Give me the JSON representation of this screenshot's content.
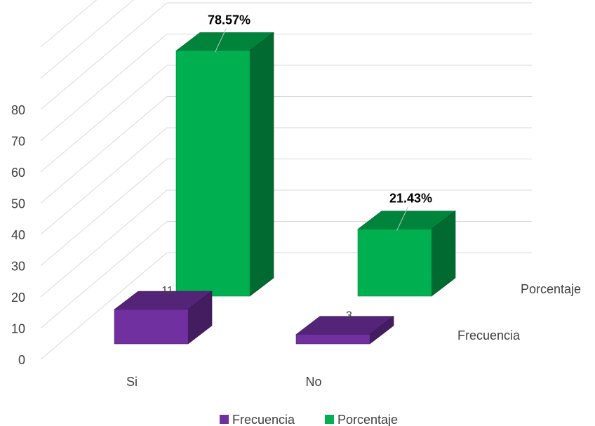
{
  "chart_data": {
    "type": "bar",
    "style": "3d-column",
    "categories": [
      "Si",
      "No"
    ],
    "series": [
      {
        "name": "Frecuencia",
        "values": [
          11,
          3
        ],
        "labels": [
          "11",
          "3"
        ],
        "color": "#7030a0"
      },
      {
        "name": "Porcentaje",
        "values": [
          78.57,
          21.43
        ],
        "labels": [
          "78.57%",
          "21.43%"
        ],
        "color": "#00b050"
      }
    ],
    "yticks": [
      0,
      10,
      20,
      30,
      40,
      50,
      60,
      70,
      80
    ],
    "ylim": [
      0,
      80
    ],
    "grid": true,
    "legend": "bottom"
  }
}
